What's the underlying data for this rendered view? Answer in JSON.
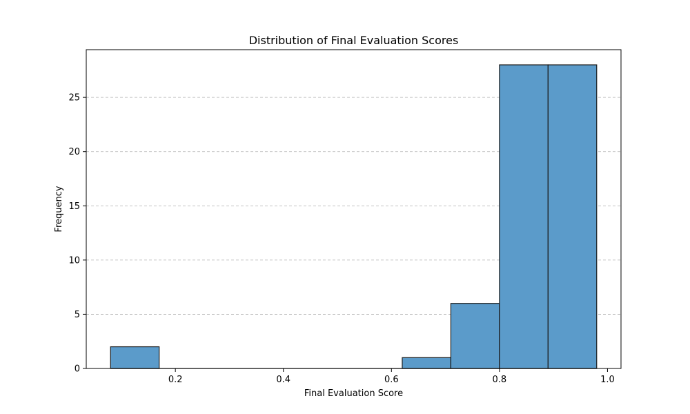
{
  "chart_data": {
    "type": "bar",
    "title": "Distribution of Final Evaluation Scores",
    "xlabel": "Final Evaluation Score",
    "ylabel": "Frequency",
    "bins": [
      {
        "x0": 0.08,
        "x1": 0.17,
        "count": 2
      },
      {
        "x0": 0.17,
        "x1": 0.26,
        "count": 0
      },
      {
        "x0": 0.26,
        "x1": 0.35,
        "count": 0
      },
      {
        "x0": 0.35,
        "x1": 0.44,
        "count": 0
      },
      {
        "x0": 0.44,
        "x1": 0.53,
        "count": 0
      },
      {
        "x0": 0.53,
        "x1": 0.62,
        "count": 0
      },
      {
        "x0": 0.62,
        "x1": 0.71,
        "count": 1
      },
      {
        "x0": 0.71,
        "x1": 0.8,
        "count": 6
      },
      {
        "x0": 0.8,
        "x1": 0.89,
        "count": 28
      },
      {
        "x0": 0.89,
        "x1": 0.98,
        "count": 28
      }
    ],
    "xlim": [
      0.035,
      1.025
    ],
    "ylim": [
      0,
      29.4
    ],
    "xticks": [
      0.2,
      0.4,
      0.6,
      0.8,
      1.0
    ],
    "xtick_labels": [
      "0.2",
      "0.4",
      "0.6",
      "0.8",
      "1.0"
    ],
    "yticks": [
      0,
      5,
      10,
      15,
      20,
      25
    ],
    "ytick_labels": [
      "0",
      "5",
      "10",
      "15",
      "20",
      "25"
    ],
    "grid": "y-dashed",
    "bar_color": "#5b9bca",
    "edge_color": "#1a1a1a"
  }
}
